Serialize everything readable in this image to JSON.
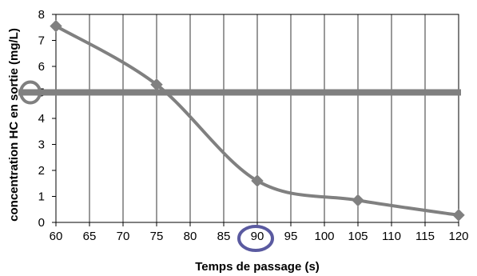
{
  "chart_data": {
    "type": "line",
    "title": "",
    "xlabel": "Temps de passage (s)",
    "ylabel": "concentration HC en sortie (mg/L)",
    "xlim": [
      60,
      120
    ],
    "ylim": [
      0,
      8
    ],
    "x_ticks": [
      60,
      65,
      70,
      75,
      80,
      85,
      90,
      95,
      100,
      105,
      110,
      115,
      120
    ],
    "y_ticks": [
      0,
      1,
      2,
      3,
      4,
      5,
      6,
      7,
      8
    ],
    "grid": "vertical",
    "legend": "none",
    "series": [
      {
        "x": [
          60,
          75,
          90,
          105,
          120
        ],
        "y": [
          7.55,
          5.3,
          1.6,
          0.85,
          0.28
        ],
        "color": "#808080",
        "marker": "diamond",
        "smooth": true
      }
    ],
    "threshold": {
      "y": 5,
      "color": "#808080"
    },
    "annotations": [
      {
        "type": "circle",
        "on": "y-tick",
        "value": 5,
        "color": "#808080"
      },
      {
        "type": "circle",
        "on": "x-tick",
        "value": 90,
        "color": "#5a5aa0"
      }
    ]
  }
}
